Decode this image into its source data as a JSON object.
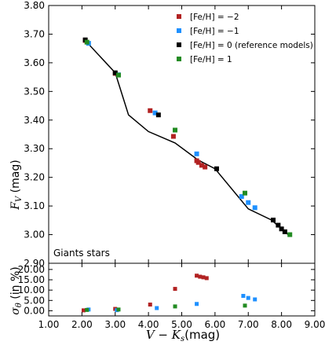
{
  "chart_data": {
    "type": "scatter",
    "x_label_var": "V − K",
    "x_label_sub": "s",
    "x_label_unit": "(mag)",
    "top_panel": {
      "y_label_var": "F",
      "y_label_sub": "V",
      "y_label_unit": "(mag)",
      "ylim": [
        2.9,
        3.8
      ],
      "yticks": [
        "2.90",
        "3.00",
        "3.10",
        "3.20",
        "3.30",
        "3.40",
        "3.50",
        "3.60",
        "3.70",
        "3.80"
      ],
      "annotation": "Giants stars",
      "legend_placement": "top-right",
      "fit_line": [
        [
          2.1,
          3.68
        ],
        [
          2.2,
          3.665
        ],
        [
          3.0,
          3.565
        ],
        [
          3.4,
          3.418
        ],
        [
          4.0,
          3.36
        ],
        [
          4.8,
          3.32
        ],
        [
          5.5,
          3.26
        ],
        [
          6.0,
          3.23
        ],
        [
          7.0,
          3.09
        ],
        [
          7.7,
          3.051
        ],
        [
          8.2,
          3.0
        ]
      ]
    },
    "bottom_panel": {
      "y_label_var": "σ",
      "y_label_sub": "θ",
      "y_label_unit": "(in %)",
      "ylim": [
        -2.5,
        23.0
      ],
      "yticks": [
        "0.00",
        "5.00",
        "10.00",
        "15.00",
        "20.00"
      ]
    },
    "xlim": [
      1.0,
      9.0
    ],
    "xticks": [
      "1.00",
      "2.00",
      "3.00",
      "4.00",
      "5.00",
      "6.00",
      "7.00",
      "8.00",
      "9.00"
    ],
    "series": [
      {
        "name": "[Fe/H] = −2",
        "color": "#b22222",
        "points": [
          [
            2.1,
            3.678
          ],
          [
            3.0,
            3.563
          ],
          [
            4.05,
            3.433
          ],
          [
            4.75,
            3.343
          ],
          [
            5.45,
            3.258
          ],
          [
            5.5,
            3.252
          ],
          [
            5.6,
            3.242
          ],
          [
            5.7,
            3.236
          ]
        ],
        "sigma": [
          [
            2.05,
            0.2
          ],
          [
            3.0,
            0.9
          ],
          [
            4.05,
            3.0
          ],
          [
            4.8,
            10.6
          ],
          [
            5.45,
            17.0
          ],
          [
            5.55,
            16.5
          ],
          [
            5.65,
            16.2
          ],
          [
            5.75,
            15.8
          ]
        ]
      },
      {
        "name": "[Fe/H] = −1",
        "color": "#1e90ff",
        "points": [
          [
            2.2,
            3.668
          ],
          [
            3.1,
            3.558
          ],
          [
            4.2,
            3.425
          ],
          [
            5.45,
            3.282
          ],
          [
            6.8,
            3.133
          ],
          [
            7.0,
            3.112
          ],
          [
            7.2,
            3.094
          ]
        ],
        "sigma": [
          [
            2.2,
            0.6
          ],
          [
            3.05,
            0.3
          ],
          [
            4.25,
            1.3
          ],
          [
            5.45,
            3.3
          ],
          [
            6.85,
            7.2
          ],
          [
            7.0,
            6.2
          ],
          [
            7.2,
            5.5
          ]
        ]
      },
      {
        "name": "[Fe/H] = 0 (reference models)",
        "color": "#000000",
        "points": [
          [
            2.1,
            3.68
          ],
          [
            3.0,
            3.565
          ],
          [
            4.3,
            3.418
          ],
          [
            6.05,
            3.23
          ],
          [
            7.75,
            3.051
          ],
          [
            7.9,
            3.033
          ],
          [
            8.0,
            3.02
          ],
          [
            8.1,
            3.01
          ]
        ],
        "sigma": []
      },
      {
        "name": "[Fe/H] = 1",
        "color": "#228b22",
        "points": [
          [
            2.15,
            3.672
          ],
          [
            3.1,
            3.557
          ],
          [
            4.8,
            3.365
          ],
          [
            6.9,
            3.145
          ],
          [
            8.25,
            3.0
          ]
        ],
        "sigma": [
          [
            2.15,
            0.4
          ],
          [
            3.1,
            0.6
          ],
          [
            4.8,
            2.1
          ],
          [
            6.9,
            2.5
          ]
        ]
      }
    ]
  }
}
